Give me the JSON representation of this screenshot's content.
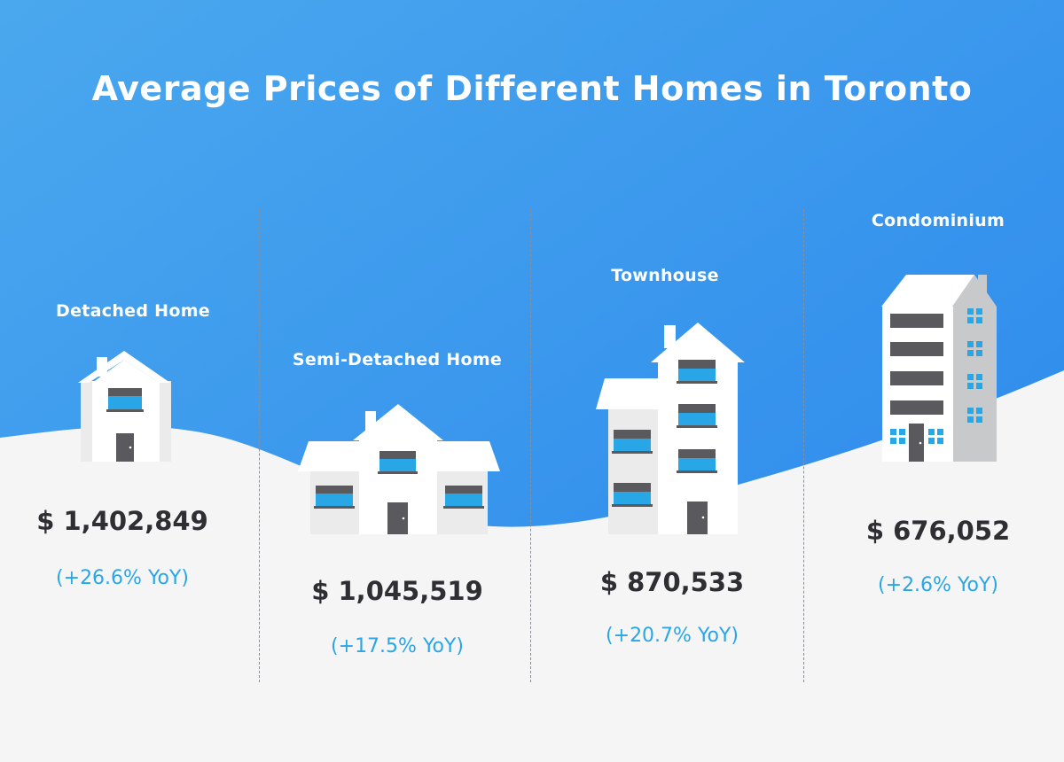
{
  "title": "Average Prices of Different Homes in Toronto",
  "colors": {
    "sky_top": "#4aa8ee",
    "sky_bottom": "#2a86ec",
    "ground": "#f6f5f6",
    "price_text": "#2f2f33",
    "yoy_text": "#29a6e6",
    "window_blue": "#29a6e6",
    "window_gray": "#5a5a5e"
  },
  "chart_data": {
    "type": "table",
    "title": "Average Prices of Different Homes in Toronto",
    "categories": [
      "Detached Home",
      "Semi-Detached Home",
      "Townhouse",
      "Condominium"
    ],
    "rows": [
      {
        "category": "Detached Home",
        "price": "$ 1,402,849",
        "yoy": "(+26.6% YoY)",
        "price_value": 1402849,
        "yoy_pct": 26.6,
        "icon": "detached-house-icon"
      },
      {
        "category": "Semi-Detached Home",
        "price": "$ 1,045,519",
        "yoy": "(+17.5% YoY)",
        "price_value": 1045519,
        "yoy_pct": 17.5,
        "icon": "semi-detached-house-icon"
      },
      {
        "category": "Townhouse",
        "price": "$ 870,533",
        "yoy": "(+20.7% YoY)",
        "price_value": 870533,
        "yoy_pct": 20.7,
        "icon": "townhouse-icon"
      },
      {
        "category": "Condominium",
        "price": "$ 676,052",
        "yoy": "(+2.6% YoY)",
        "price_value": 676052,
        "yoy_pct": 2.6,
        "icon": "condominium-icon"
      }
    ]
  }
}
